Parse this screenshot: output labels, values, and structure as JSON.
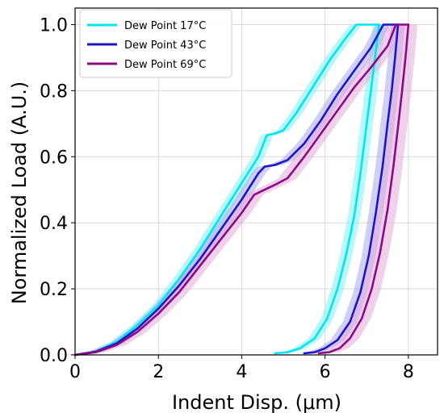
{
  "chart_data": {
    "type": "line",
    "xlabel": "Indent Disp. (μm)",
    "ylabel": "Normalized Load (A.U.)",
    "xlim": [
      0,
      8.7
    ],
    "ylim": [
      0,
      1.05
    ],
    "xticks": [
      0,
      2,
      4,
      6,
      8
    ],
    "yticks": [
      0.0,
      0.2,
      0.4,
      0.6,
      0.8,
      1.0
    ],
    "ytick_labels": [
      "0.0",
      "0.2",
      "0.4",
      "0.6",
      "0.8",
      "1.0"
    ],
    "grid": true,
    "legend_position": "top-left",
    "series": [
      {
        "name": "Dew Point 17°C",
        "color": "#00e5ee",
        "band_color": "#7ff3f6",
        "band_halfwidth": 0.15,
        "loading": [
          [
            0,
            0
          ],
          [
            0.5,
            0.01
          ],
          [
            1,
            0.04
          ],
          [
            1.5,
            0.09
          ],
          [
            2,
            0.15
          ],
          [
            2.5,
            0.23
          ],
          [
            3,
            0.32
          ],
          [
            3.5,
            0.42
          ],
          [
            4,
            0.52
          ],
          [
            4.4,
            0.6
          ],
          [
            4.6,
            0.665
          ],
          [
            4.8,
            0.67
          ],
          [
            5.0,
            0.68
          ],
          [
            5.3,
            0.73
          ],
          [
            5.7,
            0.81
          ],
          [
            6.1,
            0.89
          ],
          [
            6.5,
            0.96
          ],
          [
            6.75,
            1.0
          ],
          [
            7.3,
            1.0
          ]
        ],
        "unloading": [
          [
            7.3,
            1.0
          ],
          [
            7.2,
            0.9
          ],
          [
            7.1,
            0.8
          ],
          [
            7.0,
            0.7
          ],
          [
            6.85,
            0.55
          ],
          [
            6.7,
            0.42
          ],
          [
            6.5,
            0.3
          ],
          [
            6.3,
            0.2
          ],
          [
            6.05,
            0.11
          ],
          [
            5.75,
            0.05
          ],
          [
            5.4,
            0.02
          ],
          [
            5.1,
            0.008
          ],
          [
            4.8,
            0.005
          ]
        ]
      },
      {
        "name": "Dew Point 43°C",
        "color": "#1a16c8",
        "band_color": "#a9a8ec",
        "band_halfwidth": 0.17,
        "loading": [
          [
            0,
            0
          ],
          [
            0.5,
            0.01
          ],
          [
            1,
            0.035
          ],
          [
            1.5,
            0.08
          ],
          [
            2,
            0.14
          ],
          [
            2.5,
            0.21
          ],
          [
            3,
            0.29
          ],
          [
            3.5,
            0.38
          ],
          [
            4,
            0.47
          ],
          [
            4.4,
            0.55
          ],
          [
            4.55,
            0.57
          ],
          [
            4.8,
            0.575
          ],
          [
            5.1,
            0.59
          ],
          [
            5.5,
            0.64
          ],
          [
            5.9,
            0.71
          ],
          [
            6.3,
            0.79
          ],
          [
            6.7,
            0.86
          ],
          [
            7.1,
            0.93
          ],
          [
            7.4,
            1.0
          ],
          [
            7.75,
            1.0
          ]
        ],
        "unloading": [
          [
            7.75,
            1.0
          ],
          [
            7.68,
            0.9
          ],
          [
            7.6,
            0.8
          ],
          [
            7.5,
            0.7
          ],
          [
            7.38,
            0.57
          ],
          [
            7.22,
            0.43
          ],
          [
            7.05,
            0.3
          ],
          [
            6.85,
            0.19
          ],
          [
            6.6,
            0.1
          ],
          [
            6.3,
            0.045
          ],
          [
            6.0,
            0.02
          ],
          [
            5.75,
            0.008
          ],
          [
            5.5,
            0.005
          ]
        ]
      },
      {
        "name": "Dew Point 69°C",
        "color": "#8b0a86",
        "band_color": "#e6a9dd",
        "band_halfwidth": 0.22,
        "loading": [
          [
            0,
            0
          ],
          [
            0.5,
            0.008
          ],
          [
            1,
            0.03
          ],
          [
            1.5,
            0.07
          ],
          [
            2,
            0.125
          ],
          [
            2.5,
            0.19
          ],
          [
            3,
            0.27
          ],
          [
            3.5,
            0.35
          ],
          [
            4,
            0.43
          ],
          [
            4.3,
            0.485
          ],
          [
            4.55,
            0.5
          ],
          [
            4.8,
            0.515
          ],
          [
            5.1,
            0.535
          ],
          [
            5.5,
            0.6
          ],
          [
            5.9,
            0.67
          ],
          [
            6.3,
            0.74
          ],
          [
            6.7,
            0.81
          ],
          [
            7.1,
            0.87
          ],
          [
            7.5,
            0.935
          ],
          [
            7.7,
            1.0
          ],
          [
            8.0,
            1.0
          ]
        ],
        "unloading": [
          [
            8.0,
            1.0
          ],
          [
            7.93,
            0.9
          ],
          [
            7.85,
            0.8
          ],
          [
            7.76,
            0.7
          ],
          [
            7.64,
            0.57
          ],
          [
            7.5,
            0.44
          ],
          [
            7.32,
            0.31
          ],
          [
            7.12,
            0.2
          ],
          [
            6.88,
            0.11
          ],
          [
            6.6,
            0.05
          ],
          [
            6.35,
            0.02
          ],
          [
            6.1,
            0.008
          ],
          [
            5.85,
            0.005
          ]
        ]
      }
    ]
  }
}
